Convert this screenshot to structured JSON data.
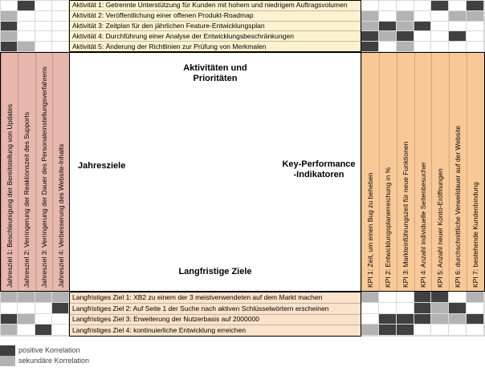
{
  "top": {
    "label": "Aktivitäten und\nPrioritäten",
    "items": [
      "Aktivität 1: Getrennte Unterstützung für Kunden mit hohem und niedrigem Auftragsvolumen",
      "Aktivität 2: Veröffentlichung einer offenen Produkt-Roadmap",
      "Aktivität 3: Zeitplan für den jährlichen Feature-Entwicklungsplan",
      "Aktivität 4: Durchführung einer Analyse der Entwicklungsbeschränkungen",
      "Aktivität 5: Änderung der Richtlinien zur Prüfung von Merkmalen"
    ]
  },
  "left": {
    "label": "Jahresziele",
    "items": [
      "Jahresziel 1: Beschleunigung der Bereitstellung von Updates",
      "Jahresziel 2: Verringerung der Reaktionszeit des Supports",
      "Jahresziel 3: Verringerung der Dauer des Personaleinstellungsverfahrens",
      "Jahresziel 4: Verbesserung des Website-Inhalts"
    ]
  },
  "right": {
    "label": "Key-Performance\n-Indikatoren",
    "items": [
      "KPI 1: Zeit, um einen Bug zu beheben",
      "KPI 2: Entwicklungsplanerreichung in %",
      "KPI 3: Markteinführungszeit für neue Funktionen",
      "KPI 4: Anzahl individuelle Seitenbesucher",
      "KPI 5: Anzahl neuer Konto-Eröffnungen",
      "KPI 6: durchschnittliche Verweildauer auf der Website",
      "KPI 7: bestehende Kundenbindung"
    ]
  },
  "bottom": {
    "label": "Langfristige Ziele",
    "items": [
      "Langfristiges Ziel 1: XB2 zu einem der 3 meistverwendeten auf dem Markt machen",
      "Langfristiges Ziel 2: Auf Seite 1 der Suche nach aktiven Schlüsselwörtern erscheinen",
      "Langfristiges Ziel 3: Erweiterung der Nutzerbasis auf 2000000",
      "Langfristiges Ziel 4: kontinuierliche Entwicklung erreichen"
    ]
  },
  "matrices": {
    "top_left": {
      "rows": "activities",
      "cols": "year_goals",
      "cells": [
        [
          0,
          2,
          0,
          0
        ],
        [
          1,
          0,
          0,
          0
        ],
        [
          2,
          0,
          0,
          0
        ],
        [
          1,
          0,
          0,
          0
        ],
        [
          2,
          1,
          0,
          0
        ]
      ]
    },
    "top_right": {
      "rows": "activities",
      "cols": "kpis",
      "cells": [
        [
          0,
          0,
          0,
          0,
          2,
          0,
          2
        ],
        [
          1,
          0,
          1,
          0,
          0,
          1,
          1
        ],
        [
          1,
          2,
          1,
          2,
          0,
          0,
          0
        ],
        [
          2,
          1,
          2,
          0,
          0,
          2,
          0
        ],
        [
          2,
          0,
          1,
          0,
          0,
          0,
          0
        ]
      ]
    },
    "bottom_left": {
      "rows": "longterm_goals",
      "cols": "year_goals",
      "cells": [
        [
          1,
          1,
          1,
          1
        ],
        [
          0,
          0,
          0,
          2
        ],
        [
          2,
          1,
          0,
          0
        ],
        [
          1,
          0,
          2,
          0
        ]
      ]
    },
    "bottom_right": {
      "rows": "longterm_goals",
      "cols": "kpis",
      "cells": [
        [
          1,
          0,
          0,
          2,
          2,
          0,
          1
        ],
        [
          0,
          0,
          0,
          2,
          1,
          2,
          0
        ],
        [
          0,
          2,
          2,
          2,
          1,
          1,
          2
        ],
        [
          1,
          2,
          2,
          0,
          0,
          0,
          0
        ]
      ]
    }
  },
  "legend": {
    "items": [
      {
        "label": "positive Korrelation",
        "value": 2,
        "color": "#404040"
      },
      {
        "label": "sekundäre Korrelation",
        "value": 1,
        "color": "#B3B3B3"
      }
    ]
  },
  "colors": {
    "activities_bg": "#FCF2CF",
    "year_goals_bg": "#E8B7AE",
    "kpi_bg": "#F8C997",
    "longterm_bg": "#FBE3CB",
    "positive": "#404040",
    "secondary": "#B3B3B3",
    "empty": "#FFFFFF"
  }
}
